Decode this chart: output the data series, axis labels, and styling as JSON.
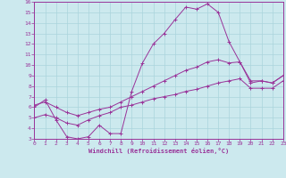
{
  "xlabel": "Windchill (Refroidissement éolien,°C)",
  "xlim": [
    0,
    23
  ],
  "ylim": [
    3,
    16
  ],
  "yticks": [
    3,
    4,
    5,
    6,
    7,
    8,
    9,
    10,
    11,
    12,
    13,
    14,
    15,
    16
  ],
  "xticks": [
    0,
    1,
    2,
    3,
    4,
    5,
    6,
    7,
    8,
    9,
    10,
    11,
    12,
    13,
    14,
    15,
    16,
    17,
    18,
    19,
    20,
    21,
    22,
    23
  ],
  "bg_color": "#cce9ee",
  "line_color": "#993399",
  "grid_color": "#aad4dc",
  "line1_x": [
    0,
    1,
    2,
    3,
    4,
    5,
    6,
    7,
    8,
    9,
    10,
    11,
    12,
    13,
    14,
    15,
    16,
    17,
    18,
    19,
    20,
    21,
    22,
    23
  ],
  "line1_y": [
    6.0,
    6.7,
    4.8,
    3.2,
    3.0,
    3.2,
    4.3,
    3.5,
    3.5,
    7.5,
    10.2,
    12.0,
    13.0,
    14.3,
    15.5,
    15.3,
    15.8,
    15.0,
    12.2,
    10.3,
    8.3,
    8.5,
    8.3,
    9.0
  ],
  "line2_x": [
    0,
    1,
    2,
    3,
    4,
    5,
    6,
    7,
    8,
    9,
    10,
    11,
    12,
    13,
    14,
    15,
    16,
    17,
    18,
    19,
    20,
    21,
    22,
    23
  ],
  "line2_y": [
    6.2,
    6.5,
    6.0,
    5.5,
    5.2,
    5.5,
    5.8,
    6.0,
    6.5,
    7.0,
    7.5,
    8.0,
    8.5,
    9.0,
    9.5,
    9.8,
    10.3,
    10.5,
    10.2,
    10.3,
    8.5,
    8.5,
    8.3,
    9.0
  ],
  "line3_x": [
    0,
    1,
    2,
    3,
    4,
    5,
    6,
    7,
    8,
    9,
    10,
    11,
    12,
    13,
    14,
    15,
    16,
    17,
    18,
    19,
    20,
    21,
    22,
    23
  ],
  "line3_y": [
    5.0,
    5.3,
    5.0,
    4.5,
    4.3,
    4.8,
    5.2,
    5.5,
    6.0,
    6.2,
    6.5,
    6.8,
    7.0,
    7.2,
    7.5,
    7.7,
    8.0,
    8.3,
    8.5,
    8.7,
    7.8,
    7.8,
    7.8,
    8.5
  ]
}
